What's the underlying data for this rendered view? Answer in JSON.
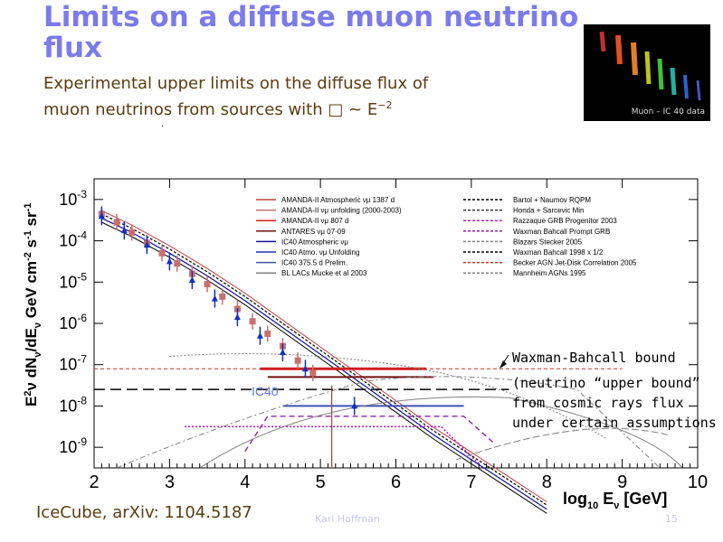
{
  "slide": {
    "title_line1": "Limits on a diffuse muon neutrino",
    "title_line2": "flux",
    "subtitle_line1": "Experimental upper limits on the diffuse flux of",
    "subtitle_line2_prefix": "muon neutrinos from sources with ",
    "subtitle_symbol": "□",
    "subtitle_sim": " ~ E",
    "subtitle_exp": "−2",
    "thumbnail_caption": "Muon – IC 40 data",
    "annotation_wb": "Waxman-Bahcall bound",
    "annotation_line1": "(neutrino “upper bound”",
    "annotation_line2": "from cosmic rays flux",
    "annotation_line3": "under certain assumptions",
    "citation": "IceCube, arXiv: 1104.5187",
    "footer_author": "Karl Hoffman",
    "footer_page": "15"
  },
  "chart_data": {
    "type": "line",
    "xlabel": "log10 Eν [GeV]",
    "ylabel": "E² dNν/dEν GeV cm⁻² s⁻¹ sr⁻¹",
    "xlim": [
      2,
      10
    ],
    "ylim_log10": [
      -9.5,
      -2.5
    ],
    "x_ticks": [
      "2",
      "3",
      "4",
      "5",
      "6",
      "7",
      "8",
      "9",
      "10"
    ],
    "y_ticks": [
      "10-3",
      "10-4",
      "10-5",
      "10-6",
      "10-7",
      "10-8",
      "10-9"
    ],
    "y_ticks_log10": [
      -3,
      -4,
      -5,
      -6,
      -7,
      -8,
      -9
    ],
    "ic40_label": "IC40",
    "legend_left": [
      {
        "label": "AMANDA-II Atmospheric νμ 1387 d",
        "color": "#c04040"
      },
      {
        "label": "AMANDA-II νμ unfolding (2000-2003)",
        "color": "#c87070"
      },
      {
        "label": "AMANDA-II νμ 807 d",
        "color": "#d02020"
      },
      {
        "label": "ANTARES νμ 07-09",
        "color": "#701010"
      },
      {
        "label": "IC40 Atmospheric νμ",
        "color": "#1010a0"
      },
      {
        "label": "IC40 Atmo. νμ Unfolding",
        "color": "#2030c0"
      },
      {
        "label": "IC40 375.5 d Prelim.",
        "color": "#4050b0"
      },
      {
        "label": "BL LACs Mucke et al 2003",
        "color": "#808080"
      }
    ],
    "legend_right": [
      {
        "label": "Bartol + Naumov RQPM",
        "color": "#000000"
      },
      {
        "label": "Honda + Sarcevic Min",
        "color": "#333333"
      },
      {
        "label": "Razzaque GRB Progenitor 2003",
        "color": "#c020c0"
      },
      {
        "label": "Waxman Bahcall Prompt GRB",
        "color": "#9020b0"
      },
      {
        "label": "Blazars Stecker 2005",
        "color": "#808080"
      },
      {
        "label": "Waxman Bahcall 1998 x 1/2",
        "color": "#000000"
      },
      {
        "label": "Becker AGN Jet-Disk Correlation 2005",
        "color": "#d03020"
      },
      {
        "label": "Mannheim AGNs 1995",
        "color": "#808080"
      }
    ],
    "atmospheric_band": {
      "x": [
        2.1,
        2.5,
        3.0,
        3.5,
        4.0,
        4.5,
        5.0,
        5.5,
        6.0,
        6.5,
        7.0,
        7.5,
        8.0
      ],
      "y_log10": [
        -3.35,
        -3.7,
        -4.2,
        -4.75,
        -5.35,
        -6.0,
        -6.65,
        -7.3,
        -7.95,
        -8.6,
        -9.2,
        -9.8,
        -10.4
      ]
    },
    "unfolding_points": {
      "x": [
        2.1,
        2.3,
        2.5,
        2.7,
        2.9,
        3.1,
        3.3,
        3.5,
        3.7,
        3.9,
        4.1,
        4.3,
        4.5,
        4.7,
        4.9
      ],
      "y_log10": [
        -3.35,
        -3.55,
        -3.8,
        -4.05,
        -4.3,
        -4.55,
        -4.8,
        -5.05,
        -5.35,
        -5.65,
        -5.95,
        -6.25,
        -6.55,
        -6.9,
        -7.2
      ]
    },
    "ic40_points": {
      "x": [
        2.1,
        2.4,
        2.7,
        3.0,
        3.3,
        3.6,
        3.9,
        4.2,
        4.5,
        4.8,
        5.45
      ],
      "y_log10": [
        -3.4,
        -3.75,
        -4.1,
        -4.5,
        -4.95,
        -5.4,
        -5.85,
        -6.3,
        -6.7,
        -7.1,
        -8.0
      ]
    },
    "amanda_limit": {
      "x": [
        4.2,
        6.4
      ],
      "y_log10": -7.1
    },
    "antares_limit": {
      "x": [
        4.3,
        6.5
      ],
      "y_log10": -7.3
    },
    "ic40_limit": {
      "x": [
        4.5,
        6.9
      ],
      "y_log10": -8.0
    },
    "wb_bound": {
      "x": [
        2.0,
        7.5
      ],
      "y_log10": -7.6
    },
    "becker_agn": {
      "x": [
        2.0,
        9.0
      ],
      "y_log10": -7.1
    },
    "razzaque": {
      "x": [
        3.2,
        6.6
      ],
      "y_log10": -8.5
    },
    "waxman_prompt": {
      "x": [
        4.0,
        6.9
      ],
      "y_log10": -8.25
    }
  }
}
